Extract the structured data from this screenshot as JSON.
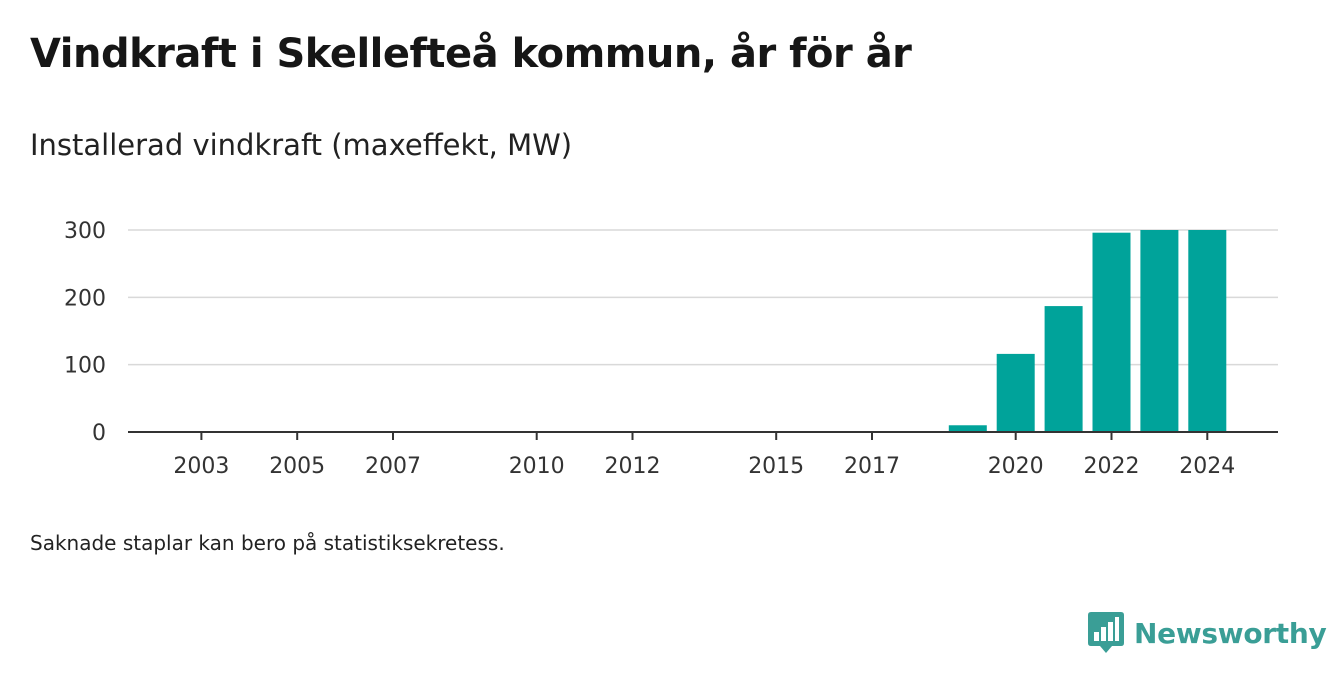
{
  "header": {
    "title": "Vindkraft i Skellefteå kommun, år för år",
    "subtitle": "Installerad vindkraft (maxeffekt, MW)"
  },
  "footer": {
    "note": "Saknade staplar kan bero på statistiksekretess.",
    "brand": "Newsworthy"
  },
  "colors": {
    "bar": "#00a39a",
    "grid": "#d9d9d9",
    "axis": "#333333",
    "brand": "#3a9e96"
  },
  "icons": [
    "newsworthy-logo-icon"
  ],
  "chart_data": {
    "type": "bar",
    "title": "Installerad vindkraft (maxeffekt, MW)",
    "xlabel": "",
    "ylabel": "",
    "categories": [
      "2002",
      "2003",
      "2004",
      "2005",
      "2006",
      "2007",
      "2008",
      "2009",
      "2010",
      "2011",
      "2012",
      "2013",
      "2014",
      "2015",
      "2016",
      "2017",
      "2018",
      "2019",
      "2020",
      "2021",
      "2022",
      "2023",
      "2024"
    ],
    "values": [
      0,
      0,
      0,
      0,
      0,
      0,
      0,
      0,
      0,
      0,
      0,
      0,
      0,
      0,
      0,
      0,
      0,
      10,
      116,
      187,
      296,
      300,
      300
    ],
    "xticks": [
      "2003",
      "2005",
      "2007",
      "2010",
      "2012",
      "2015",
      "2017",
      "2020",
      "2022",
      "2024"
    ],
    "yticks": [
      0,
      100,
      200,
      300
    ],
    "ylim": [
      0,
      300
    ],
    "grid": true,
    "legend": "none"
  }
}
